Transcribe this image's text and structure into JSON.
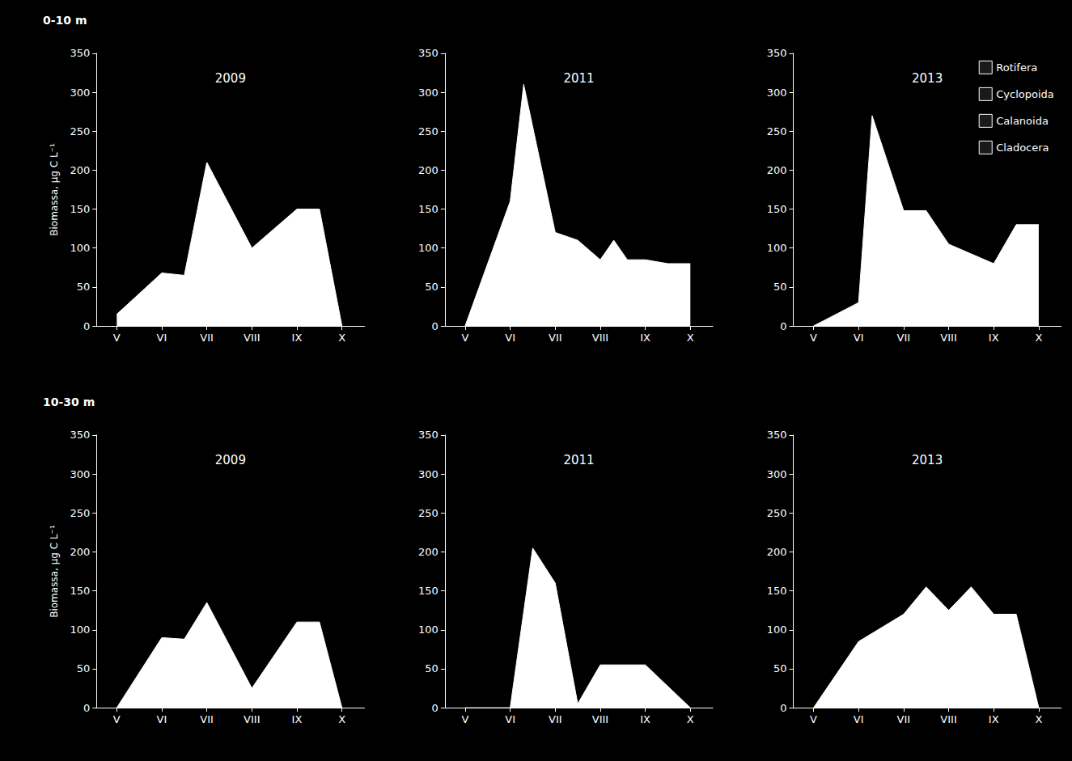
{
  "chart_data": [
    {
      "type": "area",
      "title": "2009",
      "annotation": "0-10 m",
      "ylabel": "Biomassa, µg C L⁻¹",
      "x": [
        5,
        6,
        6.5,
        7,
        8,
        9,
        9.5,
        10
      ],
      "values": [
        15,
        68,
        65,
        210,
        100,
        150,
        150,
        0
      ],
      "color": "#ffffff",
      "xlim": [
        4.55,
        10.5
      ],
      "xticks": [
        {
          "value": 5,
          "label": "V"
        },
        {
          "value": 6,
          "label": "VI"
        },
        {
          "value": 7,
          "label": "VII"
        },
        {
          "value": 8,
          "label": "VIII"
        },
        {
          "value": 9,
          "label": "IX"
        },
        {
          "value": 10,
          "label": "X"
        }
      ],
      "ylim": [
        0,
        350
      ],
      "yticks": [
        0,
        50,
        100,
        150,
        200,
        250,
        300,
        350
      ],
      "grid": false
    },
    {
      "type": "area",
      "title": "2011",
      "x": [
        5,
        6,
        6.3,
        7,
        7.5,
        8,
        8.3,
        8.6,
        9,
        9.5,
        10
      ],
      "values": [
        0,
        160,
        310,
        120,
        110,
        85,
        110,
        85,
        85,
        80,
        80
      ],
      "color": "#ffffff",
      "xlim": [
        4.55,
        10.5
      ],
      "xticks": [
        {
          "value": 5,
          "label": "V"
        },
        {
          "value": 6,
          "label": "VI"
        },
        {
          "value": 7,
          "label": "VII"
        },
        {
          "value": 8,
          "label": "VIII"
        },
        {
          "value": 9,
          "label": "IX"
        },
        {
          "value": 10,
          "label": "X"
        }
      ],
      "ylim": [
        0,
        350
      ],
      "yticks": [
        0,
        50,
        100,
        150,
        200,
        250,
        300,
        350
      ],
      "grid": false
    },
    {
      "type": "area",
      "title": "2013",
      "legend": "upper right",
      "legend_entries": [
        "Rotifera",
        "Cyclopoida",
        "Calanoida",
        "Cladocera"
      ],
      "x": [
        5,
        6,
        6.3,
        7,
        7.5,
        8,
        9,
        9.5,
        10
      ],
      "values": [
        0,
        30,
        270,
        148,
        148,
        105,
        80,
        130,
        130
      ],
      "color": "#ffffff",
      "xlim": [
        4.55,
        10.5
      ],
      "xticks": [
        {
          "value": 5,
          "label": "V"
        },
        {
          "value": 6,
          "label": "VI"
        },
        {
          "value": 7,
          "label": "VII"
        },
        {
          "value": 8,
          "label": "VIII"
        },
        {
          "value": 9,
          "label": "IX"
        },
        {
          "value": 10,
          "label": "X"
        }
      ],
      "ylim": [
        0,
        350
      ],
      "yticks": [
        0,
        50,
        100,
        150,
        200,
        250,
        300,
        350
      ],
      "grid": false
    },
    {
      "type": "area",
      "title": "2009",
      "annotation": "10-30 m",
      "ylabel": "Biomassa, µg C L⁻¹",
      "x": [
        5,
        6,
        6.5,
        7,
        8,
        9,
        9.5,
        10
      ],
      "values": [
        0,
        90,
        88,
        135,
        25,
        110,
        110,
        0
      ],
      "color": "#ffffff",
      "xlim": [
        4.55,
        10.5
      ],
      "xticks": [
        {
          "value": 5,
          "label": "V"
        },
        {
          "value": 6,
          "label": "VI"
        },
        {
          "value": 7,
          "label": "VII"
        },
        {
          "value": 8,
          "label": "VIII"
        },
        {
          "value": 9,
          "label": "IX"
        },
        {
          "value": 10,
          "label": "X"
        }
      ],
      "ylim": [
        0,
        350
      ],
      "yticks": [
        0,
        50,
        100,
        150,
        200,
        250,
        300,
        350
      ],
      "grid": false
    },
    {
      "type": "area",
      "title": "2011",
      "x": [
        5,
        6,
        6.5,
        7,
        7.5,
        8,
        9,
        10
      ],
      "values": [
        0,
        0,
        205,
        160,
        5,
        55,
        55,
        0
      ],
      "color": "#ffffff",
      "xlim": [
        4.55,
        10.5
      ],
      "xticks": [
        {
          "value": 5,
          "label": "V"
        },
        {
          "value": 6,
          "label": "VI"
        },
        {
          "value": 7,
          "label": "VII"
        },
        {
          "value": 8,
          "label": "VIII"
        },
        {
          "value": 9,
          "label": "IX"
        },
        {
          "value": 10,
          "label": "X"
        }
      ],
      "ylim": [
        0,
        350
      ],
      "yticks": [
        0,
        50,
        100,
        150,
        200,
        250,
        300,
        350
      ],
      "grid": false
    },
    {
      "type": "area",
      "title": "2013",
      "x": [
        5,
        6,
        7,
        7.5,
        8,
        8.5,
        9,
        9.5,
        10
      ],
      "values": [
        0,
        85,
        120,
        155,
        125,
        155,
        120,
        120,
        0
      ],
      "color": "#ffffff",
      "xlim": [
        4.55,
        10.5
      ],
      "xticks": [
        {
          "value": 5,
          "label": "V"
        },
        {
          "value": 6,
          "label": "VI"
        },
        {
          "value": 7,
          "label": "VII"
        },
        {
          "value": 8,
          "label": "VIII"
        },
        {
          "value": 9,
          "label": "IX"
        },
        {
          "value": 10,
          "label": "X"
        }
      ],
      "ylim": [
        0,
        350
      ],
      "yticks": [
        0,
        50,
        100,
        150,
        200,
        250,
        300,
        350
      ],
      "grid": false
    }
  ]
}
